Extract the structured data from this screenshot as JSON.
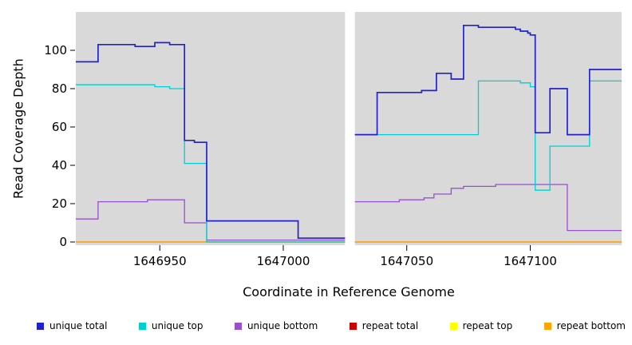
{
  "legend": {
    "items": [
      {
        "label": "unique total",
        "color": "#2222CC"
      },
      {
        "label": "unique top",
        "color": "#00CED1"
      },
      {
        "label": "unique bottom",
        "color": "#9A4FCE"
      },
      {
        "label": "repeat total",
        "color": "#CC0000"
      },
      {
        "label": "repeat top",
        "color": "#FFFF00"
      },
      {
        "label": "repeat bottom",
        "color": "#FFA500"
      }
    ]
  },
  "chart_data": {
    "type": "line",
    "subtype": "step",
    "title": "",
    "xlabel": "Coordinate in Reference Genome",
    "ylabel": "Read Coverage Depth",
    "x_range": [
      1646916,
      1647137
    ],
    "y_range": [
      0,
      120
    ],
    "x_ticks": [
      1646950,
      1647000,
      1647050,
      1647100
    ],
    "y_ticks": [
      0,
      20,
      40,
      60,
      80,
      100
    ],
    "panel_background": "#D9D9D9",
    "grid": "off",
    "legend_position": "bottom",
    "gap": [
      1647025,
      1647029
    ],
    "series": [
      {
        "name": "repeat total",
        "color": "#CC0000",
        "segments": [
          [
            [
              1646916,
              0
            ],
            [
              1647025,
              0
            ]
          ],
          [
            [
              1647029,
              0
            ],
            [
              1647137,
              0
            ]
          ]
        ]
      },
      {
        "name": "repeat top",
        "color": "#FFFF00",
        "segments": [
          [
            [
              1646916,
              0
            ],
            [
              1647025,
              0
            ]
          ],
          [
            [
              1647029,
              0
            ],
            [
              1647137,
              0
            ]
          ]
        ]
      },
      {
        "name": "repeat bottom",
        "color": "#FFA500",
        "segments": [
          [
            [
              1646916,
              0
            ],
            [
              1647025,
              0
            ]
          ],
          [
            [
              1647029,
              0
            ],
            [
              1647137,
              0
            ]
          ]
        ]
      },
      {
        "name": "unique bottom",
        "color": "#9A4FCE",
        "segments": [
          [
            [
              1646916,
              12
            ],
            [
              1646925,
              21
            ],
            [
              1646945,
              22
            ],
            [
              1646960,
              10
            ],
            [
              1646969,
              1
            ],
            [
              1647025,
              1
            ]
          ],
          [
            [
              1647029,
              21
            ],
            [
              1647047,
              22
            ],
            [
              1647057,
              23
            ],
            [
              1647061,
              25
            ],
            [
              1647068,
              28
            ],
            [
              1647073,
              29
            ],
            [
              1647086,
              30
            ],
            [
              1647115,
              6
            ],
            [
              1647137,
              6
            ]
          ]
        ]
      },
      {
        "name": "unique top",
        "color": "#00CED1",
        "segments": [
          [
            [
              1646916,
              82
            ],
            [
              1646948,
              81
            ],
            [
              1646954,
              80
            ],
            [
              1646960,
              41
            ],
            [
              1646969,
              0
            ],
            [
              1647025,
              0
            ]
          ],
          [
            [
              1647029,
              56
            ],
            [
              1647079,
              84
            ],
            [
              1647096,
              83
            ],
            [
              1647100,
              81
            ],
            [
              1647102,
              27
            ],
            [
              1647108,
              50
            ],
            [
              1647124,
              84
            ],
            [
              1647137,
              84
            ]
          ]
        ]
      },
      {
        "name": "unique total",
        "color": "#2222CC",
        "segments": [
          [
            [
              1646916,
              94
            ],
            [
              1646925,
              103
            ],
            [
              1646940,
              102
            ],
            [
              1646948,
              104
            ],
            [
              1646954,
              103
            ],
            [
              1646960,
              53
            ],
            [
              1646964,
              52
            ],
            [
              1646969,
              11
            ],
            [
              1647006,
              2
            ],
            [
              1647025,
              2
            ]
          ],
          [
            [
              1647029,
              56
            ],
            [
              1647038,
              78
            ],
            [
              1647056,
              79
            ],
            [
              1647062,
              88
            ],
            [
              1647068,
              85
            ],
            [
              1647073,
              113
            ],
            [
              1647079,
              112
            ],
            [
              1647094,
              111
            ],
            [
              1647096,
              110
            ],
            [
              1647099,
              109
            ],
            [
              1647100,
              108
            ],
            [
              1647102,
              57
            ],
            [
              1647108,
              80
            ],
            [
              1647115,
              56
            ],
            [
              1647124,
              90
            ],
            [
              1647137,
              90
            ]
          ]
        ]
      }
    ]
  }
}
